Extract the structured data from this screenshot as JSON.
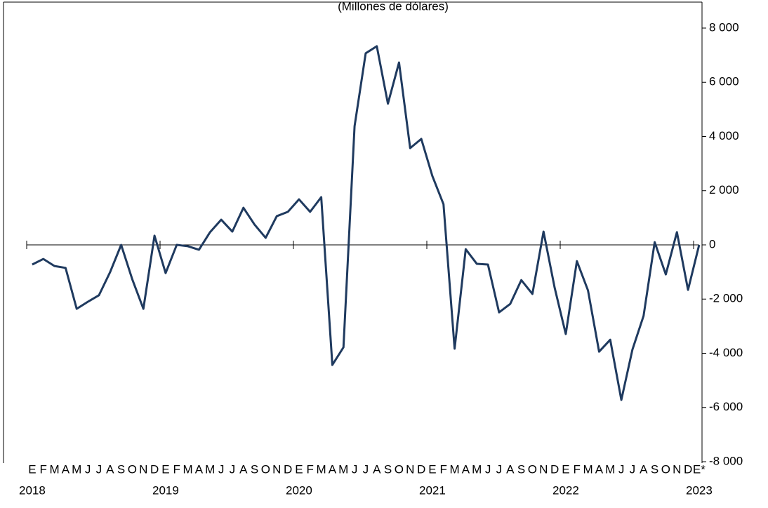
{
  "chart_data": {
    "type": "line",
    "subtitle": "(Millones de dólares)",
    "categories": [
      "E",
      "F",
      "M",
      "A",
      "M",
      "J",
      "J",
      "A",
      "S",
      "O",
      "N",
      "D",
      "E",
      "F",
      "M",
      "A",
      "M",
      "J",
      "J",
      "A",
      "S",
      "O",
      "N",
      "D",
      "E",
      "F",
      "M",
      "A",
      "M",
      "J",
      "J",
      "A",
      "S",
      "O",
      "N",
      "D",
      "E",
      "F",
      "M",
      "A",
      "M",
      "J",
      "J",
      "A",
      "S",
      "O",
      "N",
      "D",
      "E",
      "F",
      "M",
      "A",
      "M",
      "J",
      "J",
      "A",
      "S",
      "O",
      "N",
      "D",
      "E*"
    ],
    "x_groups": [
      "2018",
      "2019",
      "2020",
      "2021",
      "2022",
      "2023"
    ],
    "series": [
      {
        "color": "#1f3a5f",
        "values": [
          -725,
          -520,
          -780,
          -850,
          -2360,
          -2100,
          -1860,
          -1010,
          0,
          -1270,
          -2360,
          340,
          -1040,
          0,
          -50,
          -180,
          470,
          930,
          490,
          1370,
          750,
          260,
          1060,
          1220,
          1680,
          1220,
          1760,
          -4430,
          -3780,
          4380,
          7070,
          7330,
          5210,
          6730,
          3570,
          3910,
          2540,
          1500,
          -3830,
          -160,
          -700,
          -725,
          -2490,
          -2180,
          -1300,
          -1810,
          490,
          -1580,
          -3290,
          -600,
          -1680,
          -3940,
          -3500,
          -5720,
          -3860,
          -2620,
          100,
          -1090,
          470,
          -1660,
          0
        ]
      }
    ],
    "ylim": [
      -8000,
      8000
    ],
    "yticks": [
      {
        "value": -8000,
        "label": "-8 000"
      },
      {
        "value": -6000,
        "label": "-6 000"
      },
      {
        "value": -4000,
        "label": "-4 000"
      },
      {
        "value": -2000,
        "label": "-2 000"
      },
      0,
      {
        "value": 2000,
        "label": "2 000"
      },
      {
        "value": 4000,
        "label": "4 000"
      },
      {
        "value": 6000,
        "label": "6 000"
      },
      {
        "value": 8000,
        "label": "8 000"
      }
    ]
  }
}
